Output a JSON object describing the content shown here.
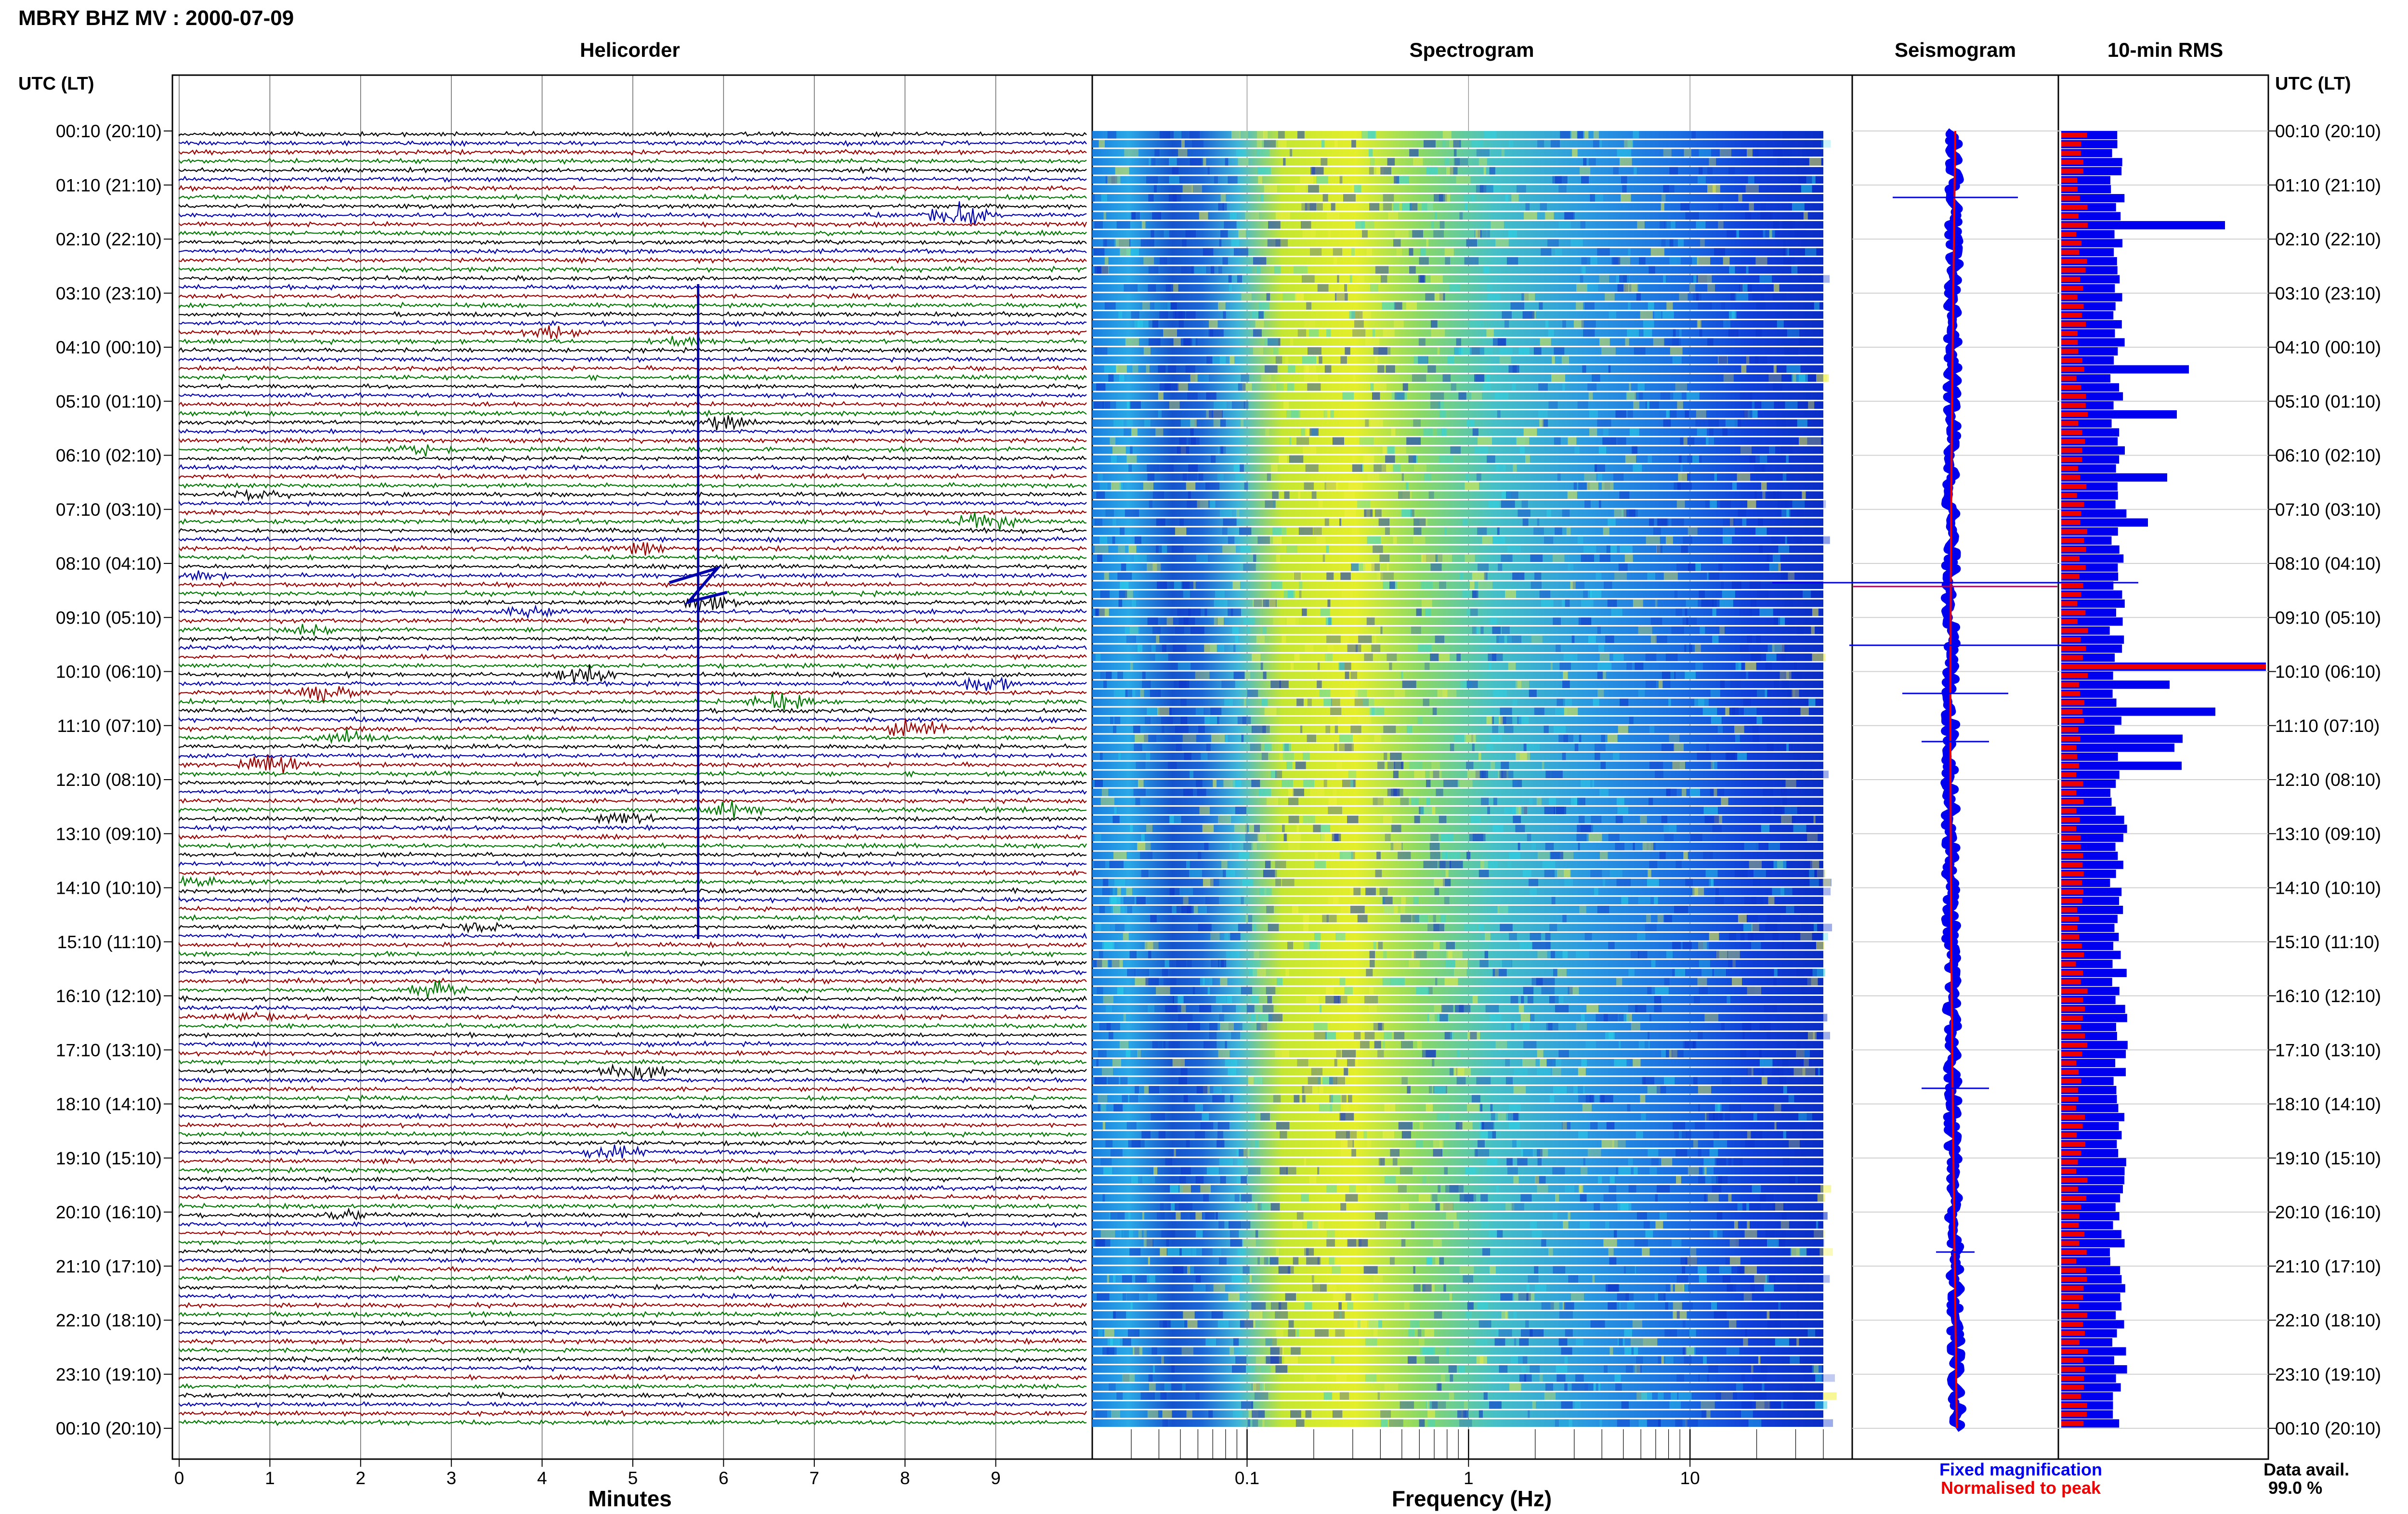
{
  "header": {
    "title": "MBRY BHZ MV : 2000-07-09"
  },
  "panels": {
    "helicorder": "Helicorder",
    "spectrogram": "Spectrogram",
    "seismogram": "Seismogram",
    "rms": "10-min RMS"
  },
  "axis_labels": {
    "utc_left": "UTC (LT)",
    "utc_right": "UTC (LT)",
    "minutes": "Minutes",
    "frequency": "Frequency (Hz)"
  },
  "time_labels": [
    "00:10 (20:10)",
    "01:10 (21:10)",
    "02:10 (22:10)",
    "03:10 (23:10)",
    "04:10 (00:10)",
    "05:10 (01:10)",
    "06:10 (02:10)",
    "07:10 (03:10)",
    "08:10 (04:10)",
    "09:10 (05:10)",
    "10:10 (06:10)",
    "11:10 (07:10)",
    "12:10 (08:10)",
    "13:10 (09:10)",
    "14:10 (10:10)",
    "15:10 (11:10)",
    "16:10 (12:10)",
    "17:10 (13:10)",
    "18:10 (14:10)",
    "19:10 (15:10)",
    "20:10 (16:10)",
    "21:10 (17:10)",
    "22:10 (18:10)",
    "23:10 (19:10)",
    "00:10 (20:10)"
  ],
  "minute_ticks": [
    "0",
    "1",
    "2",
    "3",
    "4",
    "5",
    "6",
    "7",
    "8",
    "9"
  ],
  "freq_ticks": [
    "0.1",
    "1",
    "10"
  ],
  "legend": {
    "fixed": "Fixed magnification",
    "normalised": "Normalised to peak"
  },
  "data_avail": {
    "label": "Data avail.",
    "value": "99.0 %"
  },
  "colors": {
    "trace_cycle": [
      "#000000",
      "#0000aa",
      "#990000",
      "#007700"
    ],
    "rms_fixed": "#0000ee",
    "rms_norm": "#ee0000"
  },
  "chart_data": [
    {
      "type": "line",
      "title": "Helicorder",
      "xlabel": "Minutes",
      "xlim": [
        0,
        10
      ],
      "rows": 144,
      "row_minutes": 10,
      "trace_color_cycle": [
        "black",
        "blue",
        "dark red",
        "green"
      ],
      "notes": "Continuous seismic traces, one row per 10 minutes, 00:10 to 24:00 UTC; large event near minute 5.7 around 08:30 UTC"
    },
    {
      "type": "heatmap",
      "title": "Spectrogram",
      "xlabel": "Frequency (Hz)",
      "xscale": "log",
      "xlim": [
        0.02,
        40
      ],
      "rows": 144,
      "notes": "Energy concentrated between ~0.2 and ~0.6 Hz (microseism band), decreasing above 10 Hz"
    },
    {
      "type": "line",
      "title": "Seismogram",
      "rows": 144,
      "series": [
        {
          "name": "Fixed magnification",
          "color": "blue"
        },
        {
          "name": "Normalised to peak",
          "color": "red"
        }
      ]
    },
    {
      "type": "bar",
      "title": "10-min RMS",
      "rows": 144,
      "series": [
        {
          "name": "Fixed magnification",
          "color": "blue"
        },
        {
          "name": "Normalised to peak",
          "color": "red"
        }
      ],
      "notes": "Peak RMS around 08:30 UTC"
    }
  ]
}
